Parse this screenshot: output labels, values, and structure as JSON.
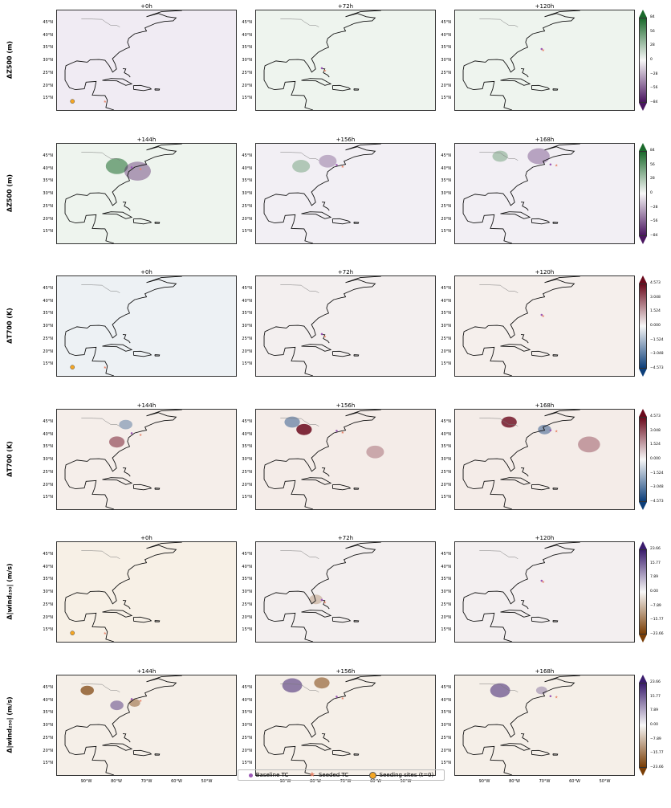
{
  "chart_data": {
    "type": "heatmap",
    "colormaps": {
      "z500": {
        "low": "#4a1660",
        "mid": "#f7f7f7",
        "high": "#1b6a2c"
      },
      "t700": {
        "low": "#0d3f7a",
        "mid": "#f7f7f7",
        "high": "#6b0a1d"
      },
      "wind": {
        "low": "#7a3e06",
        "mid": "#f7f7f7",
        "high": "#3b1d6e"
      }
    },
    "rows": [
      {
        "label": "ΔZ500 (m)",
        "var": "z500",
        "colorbar": {
          "range": [
            -84,
            84
          ],
          "ticks": [
            "84",
            "56",
            "28",
            "0",
            "−28",
            "−56",
            "−84"
          ]
        },
        "panels": [
          {
            "title": "+0h",
            "fill": "#f0ebf3",
            "seed": true,
            "seeded_tc": [
              84.0,
              13.5
            ]
          },
          {
            "title": "+72h",
            "fill": "#eef4ee",
            "baseline_tc": [
              78.0,
              26.8
            ],
            "seeded_tc": [
              77.0,
              26.0
            ]
          },
          {
            "title": "+120h",
            "fill": "#eef4ee",
            "baseline_tc": [
              71.0,
              34.5
            ],
            "seeded_tc": [
              70.5,
              34.2
            ]
          }
        ]
      },
      {
        "label": "ΔZ500 (m)",
        "var": "z500",
        "colorbar": {
          "range": [
            -84,
            84
          ],
          "ticks": [
            "84",
            "56",
            "28",
            "0",
            "−28",
            "−56",
            "−84"
          ]
        },
        "panels": [
          {
            "title": "+144h",
            "fill": "#eef4ee",
            "baseline_tc": [
              75.0,
              40.5
            ],
            "seeded_tc": [
              72.0,
              40.0
            ]
          },
          {
            "title": "+156h",
            "fill": "#f2eff4",
            "baseline_tc": [
              73.0,
              41.5
            ],
            "seeded_tc": [
              71.0,
              41.0
            ]
          },
          {
            "title": "+168h",
            "fill": "#f2eff4",
            "baseline_tc": [
              68.0,
              41.7
            ],
            "seeded_tc": [
              66.0,
              41.5
            ]
          }
        ]
      },
      {
        "label": "ΔT700 (K)",
        "var": "t700",
        "colorbar": {
          "range": [
            -4.573,
            4.573
          ],
          "ticks": [
            "4.573",
            "3.048",
            "1.524",
            "0.000",
            "−1.524",
            "−3.048",
            "−4.573"
          ]
        },
        "panels": [
          {
            "title": "+0h",
            "fill": "#edf1f4",
            "seed": true,
            "seeded_tc": [
              84.0,
              13.5
            ]
          },
          {
            "title": "+72h",
            "fill": "#f3efef",
            "baseline_tc": [
              78.0,
              26.8
            ],
            "seeded_tc": [
              77.0,
              26.0
            ]
          },
          {
            "title": "+120h",
            "fill": "#f5efec",
            "baseline_tc": [
              71.0,
              34.5
            ],
            "seeded_tc": [
              70.5,
              34.2
            ]
          }
        ]
      },
      {
        "label": "ΔT700 (K)",
        "var": "t700",
        "colorbar": {
          "range": [
            -4.573,
            4.573
          ],
          "ticks": [
            "4.573",
            "3.048",
            "1.524",
            "0.000",
            "−1.524",
            "−3.048",
            "−4.573"
          ]
        },
        "panels": [
          {
            "title": "+144h",
            "fill": "#f5eeea",
            "baseline_tc": [
              75.0,
              40.5
            ],
            "seeded_tc": [
              72.0,
              40.0
            ]
          },
          {
            "title": "+156h",
            "fill": "#f4ece8",
            "baseline_tc": [
              73.0,
              41.5
            ],
            "seeded_tc": [
              71.0,
              41.0
            ]
          },
          {
            "title": "+168h",
            "fill": "#f4ece8",
            "baseline_tc": [
              68.0,
              41.7
            ],
            "seeded_tc": [
              66.0,
              41.5
            ]
          }
        ]
      },
      {
        "label": "Δ|wind₂₅₀| (m/s)",
        "var": "wind",
        "colorbar": {
          "range": [
            -23.66,
            23.66
          ],
          "ticks": [
            "23.66",
            "15.77",
            "7.89",
            "0.00",
            "−7.89",
            "−15.77",
            "−23.66"
          ]
        },
        "panels": [
          {
            "title": "+0h",
            "fill": "#f7f0e6",
            "seed": true,
            "seeded_tc": [
              84.0,
              13.5
            ]
          },
          {
            "title": "+72h",
            "fill": "#f3efef",
            "baseline_tc": [
              78.0,
              26.8
            ],
            "seeded_tc": [
              77.0,
              26.0
            ]
          },
          {
            "title": "+120h",
            "fill": "#f3eff0",
            "baseline_tc": [
              71.0,
              34.5
            ],
            "seeded_tc": [
              70.5,
              34.2
            ]
          }
        ]
      },
      {
        "label": "Δ|wind₂₅₀| (m/s)",
        "var": "wind",
        "colorbar": {
          "range": [
            -23.66,
            23.66
          ],
          "ticks": [
            "23.66",
            "15.77",
            "7.89",
            "0.00",
            "−7.89",
            "−15.77",
            "−23.66"
          ]
        },
        "panels": [
          {
            "title": "+144h",
            "fill": "#f5efe8",
            "baseline_tc": [
              75.0,
              40.5
            ],
            "seeded_tc": [
              72.0,
              40.0
            ]
          },
          {
            "title": "+156h",
            "fill": "#f5efe8",
            "baseline_tc": [
              73.0,
              41.5
            ],
            "seeded_tc": [
              71.0,
              41.0
            ]
          },
          {
            "title": "+168h",
            "fill": "#f5efe8",
            "baseline_tc": [
              68.0,
              41.7
            ],
            "seeded_tc": [
              66.0,
              41.5
            ]
          }
        ]
      }
    ],
    "lat_ticks": [
      "45°N",
      "40°N",
      "35°N",
      "30°N",
      "25°N",
      "20°N",
      "15°N"
    ],
    "lon_ticks": [
      "90°W",
      "80°W",
      "70°W",
      "60°W",
      "50°W"
    ],
    "extent": {
      "lon": [
        -100,
        -40
      ],
      "lat": [
        10,
        50
      ]
    },
    "legend": [
      {
        "label": "Baseline TC",
        "color": "#9b59b6",
        "marker": "dot"
      },
      {
        "label": "Seeded TC",
        "color": "#e8846a",
        "marker": "star"
      },
      {
        "label": "Seeding sites (t=0)",
        "color": "#f5a623",
        "marker": "circle"
      }
    ],
    "seeding_site": [
      95.0,
      13.5
    ]
  }
}
